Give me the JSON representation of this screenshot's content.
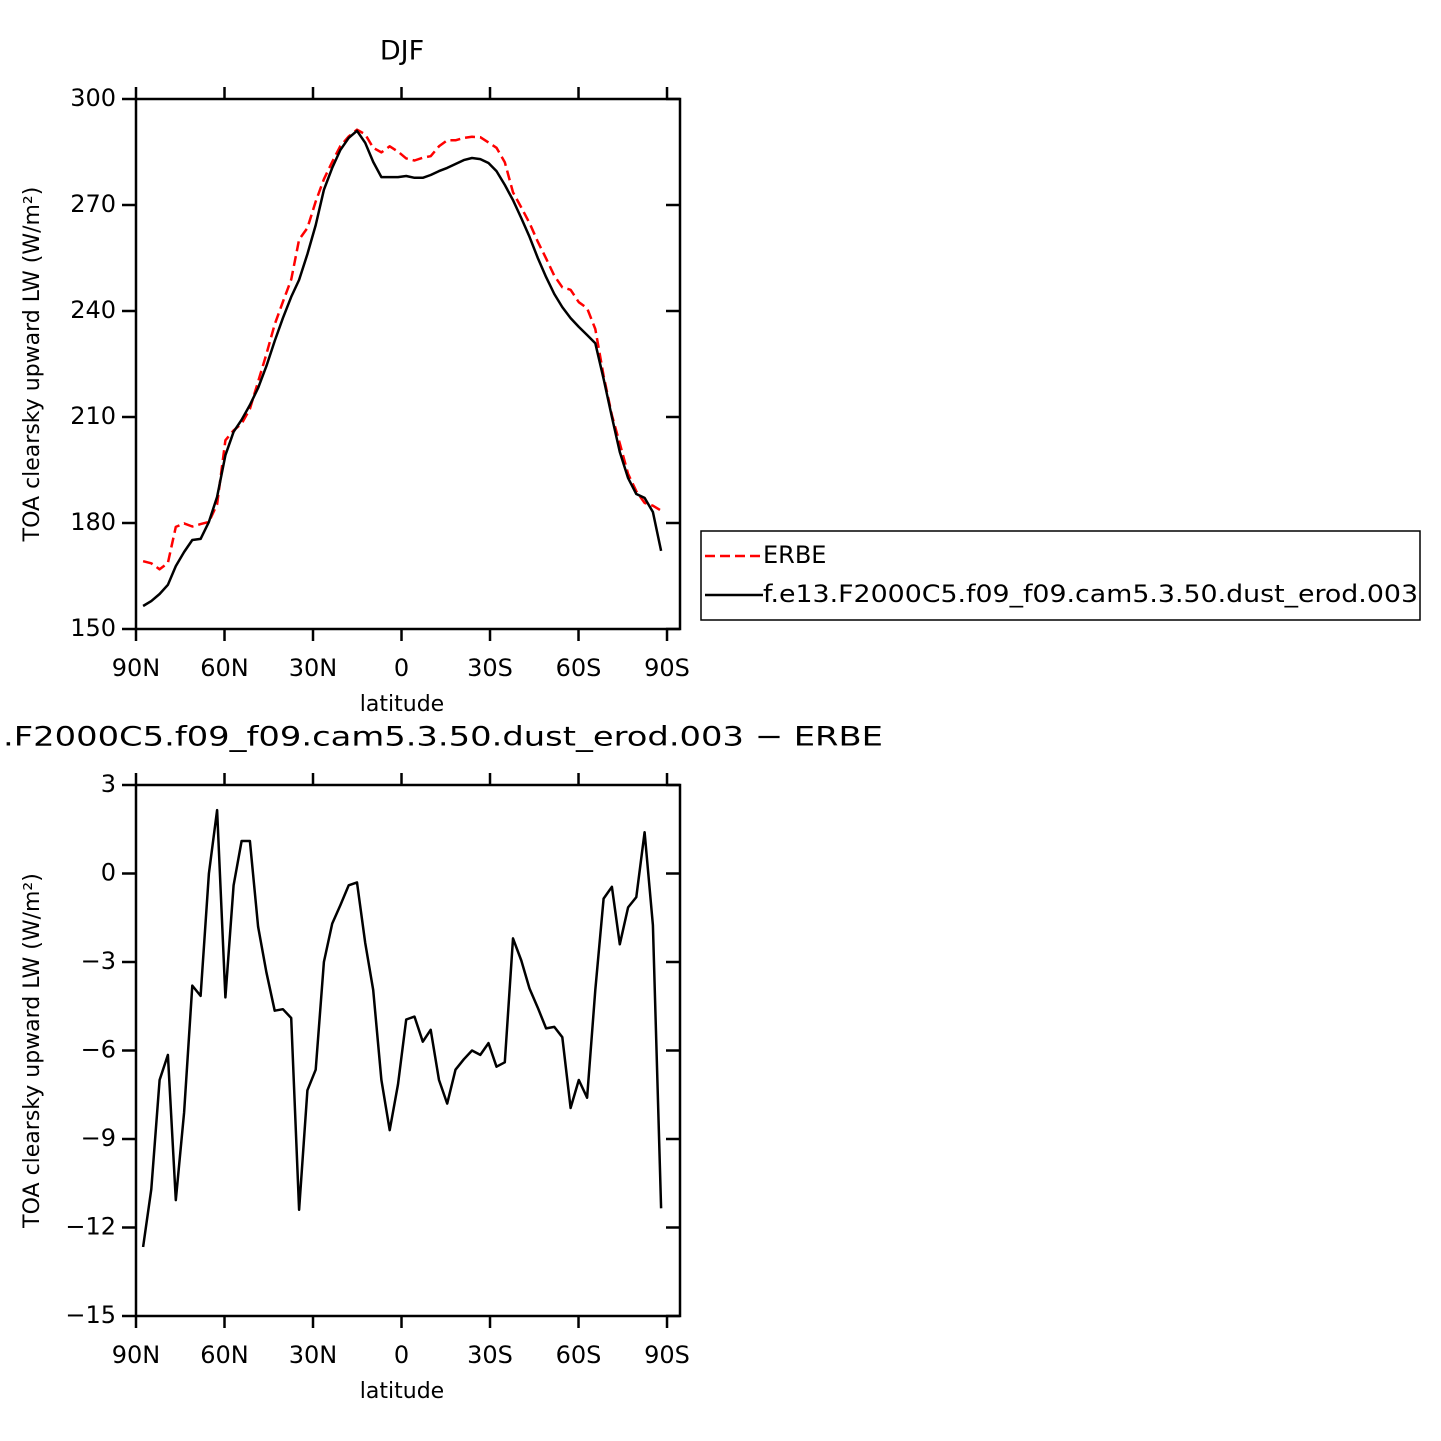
{
  "chart_data": [
    {
      "type": "line",
      "title": "DJF",
      "x_label": "latitude",
      "y_label": "TOA clearsky upward LW (W/m²)",
      "x": [
        87.6,
        84.8,
        82.0,
        79.2,
        76.5,
        73.7,
        70.9,
        68.1,
        65.3,
        62.5,
        59.7,
        56.9,
        54.2,
        51.4,
        48.6,
        45.8,
        43.0,
        40.2,
        37.4,
        34.7,
        31.9,
        29.1,
        26.3,
        23.5,
        20.7,
        17.9,
        15.1,
        12.3,
        9.6,
        6.8,
        4.0,
        1.2,
        -1.6,
        -4.4,
        -7.2,
        -9.9,
        -12.7,
        -15.5,
        -18.3,
        -21.1,
        -23.9,
        -26.7,
        -29.5,
        -32.2,
        -35.0,
        -37.8,
        -40.6,
        -43.4,
        -46.2,
        -49.0,
        -51.8,
        -54.5,
        -57.3,
        -60.1,
        -62.9,
        -65.7,
        -68.5,
        -71.3,
        -74.0,
        -76.8,
        -79.6,
        -82.4,
        -85.2,
        -88.0
      ],
      "xlim": [
        90,
        -94.4
      ],
      "xticks": [
        {
          "value": 90,
          "label": "90N"
        },
        {
          "value": 60,
          "label": "60N"
        },
        {
          "value": 30,
          "label": "30N"
        },
        0,
        {
          "value": -30,
          "label": "30S"
        },
        {
          "value": -60,
          "label": "60S"
        },
        {
          "value": -90,
          "label": "90S"
        }
      ],
      "ylim": [
        150,
        300
      ],
      "yticks": [
        150,
        180,
        210,
        240,
        270,
        300
      ],
      "legend": "right",
      "series": [
        {
          "name": "ERBE",
          "color": "#ff0000",
          "line_style": "dashed",
          "values": [
            169.2,
            168.6,
            166.9,
            168.7,
            178.9,
            179.9,
            179.0,
            179.7,
            180.3,
            185.3,
            203.4,
            206.2,
            208.1,
            212.3,
            220.0,
            227.8,
            236.2,
            242.6,
            248.9,
            260.2,
            263.5,
            271.0,
            277.3,
            282.2,
            286.7,
            289.4,
            291.3,
            290.0,
            286.2,
            284.9,
            286.6,
            285.1,
            283.2,
            282.6,
            283.4,
            283.8,
            286.6,
            288.3,
            288.3,
            289.0,
            289.3,
            289.2,
            287.7,
            286.2,
            282.1,
            273.6,
            269.3,
            264.9,
            259.6,
            254.9,
            250.0,
            246.7,
            246.0,
            242.5,
            240.8,
            234.9,
            221.7,
            210.5,
            202.5,
            193.9,
            189.0,
            185.7,
            184.9,
            183.5
          ]
        },
        {
          "name": "f.e13.F2000C5.f09_f09.cam5.3.50.dust_erod.003",
          "color": "#000000",
          "line_style": "solid",
          "values": [
            156.5,
            157.9,
            159.9,
            162.5,
            167.8,
            171.8,
            175.2,
            175.5,
            180.3,
            187.4,
            199.2,
            205.8,
            209.2,
            213.4,
            218.2,
            224.4,
            231.5,
            238.0,
            244.0,
            248.8,
            256.1,
            264.3,
            274.3,
            280.5,
            285.6,
            289.0,
            291.0,
            287.6,
            282.2,
            277.9,
            277.9,
            277.9,
            278.2,
            277.7,
            277.7,
            278.5,
            279.6,
            280.5,
            281.6,
            282.7,
            283.3,
            283.0,
            281.9,
            279.6,
            275.7,
            271.4,
            266.3,
            261.0,
            255.0,
            249.6,
            244.8,
            241.1,
            238.0,
            235.5,
            233.2,
            230.9,
            220.8,
            210.0,
            200.1,
            192.7,
            188.2,
            187.1,
            183.1,
            172.1
          ]
        }
      ]
    },
    {
      "type": "line",
      "title": ".F2000C5.f09_f09.cam5.3.50.dust_erod.003 − ERBE",
      "x_label": "latitude",
      "y_label": "TOA clearsky upward LW (W/m²)",
      "x": [
        87.6,
        84.8,
        82.0,
        79.2,
        76.5,
        73.7,
        70.9,
        68.1,
        65.3,
        62.5,
        59.7,
        56.9,
        54.2,
        51.4,
        48.6,
        45.8,
        43.0,
        40.2,
        37.4,
        34.7,
        31.9,
        29.1,
        26.3,
        23.5,
        20.7,
        17.9,
        15.1,
        12.3,
        9.6,
        6.8,
        4.0,
        1.2,
        -1.6,
        -4.4,
        -7.2,
        -9.9,
        -12.7,
        -15.5,
        -18.3,
        -21.1,
        -23.9,
        -26.7,
        -29.5,
        -32.2,
        -35.0,
        -37.8,
        -40.6,
        -43.4,
        -46.2,
        -49.0,
        -51.8,
        -54.5,
        -57.3,
        -60.1,
        -62.9,
        -65.7,
        -68.5,
        -71.3,
        -74.0,
        -76.8,
        -79.6,
        -82.4,
        -85.2,
        -88.0
      ],
      "xlim": [
        90,
        -94.4
      ],
      "xticks": [
        {
          "value": 90,
          "label": "90N"
        },
        {
          "value": 60,
          "label": "60N"
        },
        {
          "value": 30,
          "label": "30N"
        },
        0,
        {
          "value": -30,
          "label": "30S"
        },
        {
          "value": -60,
          "label": "60S"
        },
        {
          "value": -90,
          "label": "90S"
        }
      ],
      "ylim": [
        -15,
        3
      ],
      "yticks": [
        {
          "value": -15,
          "label": "−15"
        },
        {
          "value": -12,
          "label": "−12"
        },
        {
          "value": -9,
          "label": "−9"
        },
        {
          "value": -6,
          "label": "−6"
        },
        {
          "value": -3,
          "label": "−3"
        },
        0,
        3
      ],
      "color": "#000000",
      "values": [
        -12.66,
        -10.7,
        -7.0,
        -6.15,
        -11.07,
        -8.1,
        -3.8,
        -4.15,
        0.0,
        2.15,
        -4.2,
        -0.4,
        1.1,
        1.1,
        -1.8,
        -3.35,
        -4.65,
        -4.6,
        -4.9,
        -11.4,
        -7.35,
        -6.65,
        -3.0,
        -1.7,
        -1.07,
        -0.4,
        -0.3,
        -2.35,
        -3.95,
        -7.0,
        -8.7,
        -7.15,
        -4.95,
        -4.85,
        -5.7,
        -5.3,
        -7.0,
        -7.8,
        -6.65,
        -6.3,
        -6.0,
        -6.15,
        -5.75,
        -6.55,
        -6.4,
        -2.2,
        -2.95,
        -3.9,
        -4.55,
        -5.25,
        -5.2,
        -5.55,
        -7.95,
        -7.0,
        -7.6,
        -3.95,
        -0.85,
        -0.45,
        -2.4,
        -1.15,
        -0.8,
        1.4,
        -1.75,
        -11.35
      ]
    }
  ]
}
